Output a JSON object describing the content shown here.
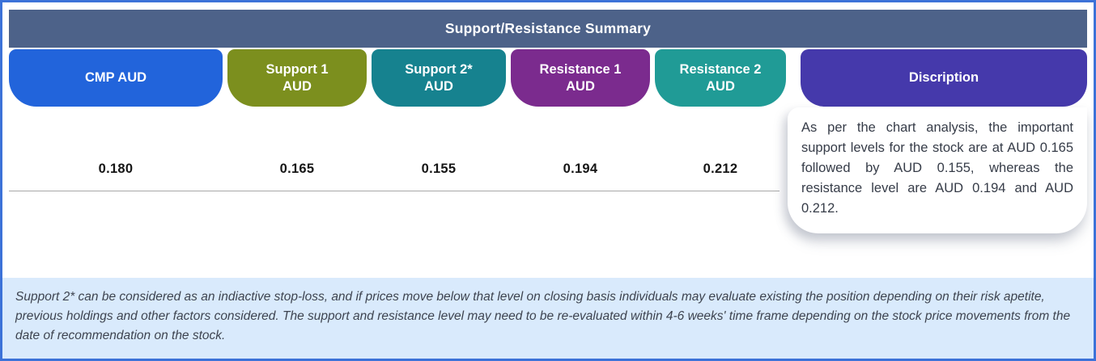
{
  "window": {
    "border_color": "#3c72d8",
    "background": "#ffffff"
  },
  "header": {
    "title": "Support/Resistance Summary",
    "bg_color": "#4d6289"
  },
  "table": {
    "divider_color": "#a8a8a8",
    "columns": [
      {
        "id": "cmp",
        "line1": "CMP AUD",
        "line2": "",
        "value": "0.180",
        "color": "#2264db"
      },
      {
        "id": "support1",
        "line1": "Support 1",
        "line2": "AUD",
        "value": "0.165",
        "color": "#7c8f1e"
      },
      {
        "id": "support2",
        "line1": "Support 2*",
        "line2": "AUD",
        "value": "0.155",
        "color": "#16828f"
      },
      {
        "id": "resistance1",
        "line1": "Resistance 1",
        "line2": "AUD",
        "value": "0.194",
        "color": "#7b2b8e"
      },
      {
        "id": "resistance2",
        "line1": "Resistance 2",
        "line2": "AUD",
        "value": "0.212",
        "color": "#209b96"
      }
    ]
  },
  "description": {
    "header_label": "Discription",
    "header_color": "#4539ab",
    "body_text": "As per the chart analysis, the important support levels for the stock are at AUD 0.165 followed by AUD 0.155, whereas the resistance level are AUD 0.194 and AUD 0.212."
  },
  "footnote": {
    "bg_color": "#d9eafc",
    "text": "Support 2* can be considered as an indiactive stop-loss, and if prices move below that level on closing basis individuals may evaluate existing the position depending on their risk apetite, previous holdings and other factors considered. The support and resistance level may need to be re-evaluated within 4-6 weeks' time frame depending on the stock price movements from  the date of recommendation on the stock."
  },
  "chart_data": {
    "type": "table",
    "title": "Support/Resistance Summary",
    "columns": [
      "CMP AUD",
      "Support 1 AUD",
      "Support 2* AUD",
      "Resistance 1 AUD",
      "Resistance 2 AUD",
      "Discription"
    ],
    "rows": [
      [
        "0.180",
        "0.165",
        "0.155",
        "0.194",
        "0.212",
        "As per the chart analysis, the important support levels for the stock are at AUD 0.165 followed by AUD 0.155, whereas the resistance level are AUD 0.194 and AUD 0.212."
      ]
    ]
  }
}
